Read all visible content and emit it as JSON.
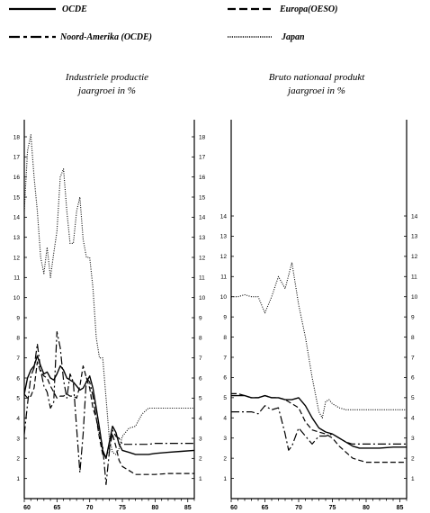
{
  "legend": [
    {
      "label": "OCDE",
      "style": "solid"
    },
    {
      "label": "Europa(OESO)",
      "style": "dashed"
    },
    {
      "label": "Noord-Amerika (OCDE)",
      "style": "dashdot"
    },
    {
      "label": "Japan",
      "style": "dotted"
    }
  ],
  "chart_data": [
    {
      "type": "line",
      "title_lines": [
        "Industriele productie",
        "jaargroei in %"
      ],
      "xlabel": "",
      "ylabel": "",
      "xlim": [
        60,
        86
      ],
      "ylim": [
        0,
        18
      ],
      "xticks": [
        60,
        65,
        70,
        75,
        80,
        85
      ],
      "xtick_labels": [
        "60",
        "65",
        "70",
        "75",
        "80",
        "85"
      ],
      "yticks": [
        1,
        2,
        3,
        4,
        5,
        6,
        7,
        8,
        9,
        10,
        11,
        12,
        13,
        14,
        15,
        16,
        17,
        18
      ],
      "grid": false,
      "series": [
        {
          "name": "OCDE",
          "style": "solid",
          "x": [
            60,
            60.5,
            61,
            61.5,
            62,
            62.5,
            63,
            63.5,
            64,
            64.5,
            65,
            65.5,
            66,
            66.5,
            67,
            67.5,
            68,
            68.5,
            69,
            69.5,
            70,
            70.5,
            71,
            71.5,
            72,
            72.5,
            73,
            73.5,
            74,
            74.5,
            75,
            76,
            77,
            78,
            79,
            80,
            82,
            84,
            86
          ],
          "y": [
            5.2,
            6.0,
            6.4,
            6.6,
            7.1,
            6.6,
            6.2,
            6.3,
            6.0,
            5.9,
            6.2,
            6.6,
            6.4,
            6.0,
            5.9,
            5.8,
            5.6,
            5.4,
            5.5,
            5.8,
            6.1,
            5.5,
            4.5,
            3.5,
            2.4,
            2.0,
            2.8,
            3.6,
            3.3,
            2.7,
            2.4,
            2.3,
            2.2,
            2.2,
            2.2,
            2.25,
            2.3,
            2.35,
            2.4
          ]
        },
        {
          "name": "Europa(OESO)",
          "style": "dashed",
          "x": [
            60,
            60.5,
            61,
            61.5,
            62,
            62.5,
            63,
            63.5,
            64,
            64.5,
            65,
            65.5,
            66,
            66.5,
            67,
            67.5,
            68,
            68.5,
            69,
            69.5,
            70,
            70.5,
            71,
            71.5,
            72,
            72.5,
            73,
            73.5,
            74,
            74.5,
            75,
            76,
            77,
            78,
            80,
            82,
            84,
            86
          ],
          "y": [
            5.2,
            5.0,
            5.1,
            5.5,
            6.8,
            6.3,
            6.1,
            6.0,
            5.6,
            5.3,
            5.0,
            5.1,
            5.1,
            5.2,
            5.1,
            5.1,
            5.0,
            5.6,
            6.6,
            6.0,
            5.5,
            4.5,
            4.0,
            3.0,
            2.2,
            2.1,
            2.5,
            3.2,
            2.6,
            1.9,
            1.6,
            1.4,
            1.2,
            1.2,
            1.2,
            1.25,
            1.25,
            1.25
          ]
        },
        {
          "name": "Noord-Amerika (OCDE)",
          "style": "dashdot",
          "x": [
            60,
            60.5,
            61,
            61.5,
            62,
            62.5,
            63,
            63.5,
            64,
            64.5,
            65,
            65.5,
            66,
            66.5,
            67,
            67.5,
            68,
            68.5,
            69,
            69.5,
            70,
            70.5,
            71,
            71.5,
            72,
            72.5,
            73,
            73.5,
            74,
            74.5,
            75,
            76,
            77,
            78,
            79,
            80,
            82,
            84,
            86
          ],
          "y": [
            3.2,
            4.7,
            6.1,
            6.5,
            7.7,
            6.4,
            5.6,
            5.3,
            4.5,
            4.8,
            8.3,
            7.5,
            5.9,
            5.0,
            6.2,
            5.8,
            3.5,
            1.3,
            3.2,
            6.0,
            5.8,
            5.1,
            4.0,
            3.2,
            2.6,
            0.7,
            2.3,
            3.4,
            3.1,
            3.0,
            2.7,
            2.7,
            2.7,
            2.7,
            2.7,
            2.75,
            2.75,
            2.75,
            2.75
          ]
        },
        {
          "name": "Japan",
          "style": "dotted",
          "x": [
            60,
            60.5,
            61,
            61.5,
            62,
            62.5,
            63,
            63.5,
            64,
            64.5,
            65,
            65.5,
            66,
            66.5,
            67,
            67.5,
            68,
            68.5,
            69,
            69.5,
            70,
            70.5,
            71,
            71.5,
            72,
            72.5,
            73,
            73.5,
            74,
            74.5,
            75,
            75.5,
            76,
            77,
            78,
            79,
            80,
            82,
            84,
            86
          ],
          "y": [
            14.3,
            17.3,
            18.1,
            16.0,
            14.3,
            12.0,
            11.2,
            12.5,
            11.0,
            12.2,
            13.3,
            16.0,
            16.4,
            14.3,
            12.7,
            12.7,
            14.3,
            15.0,
            12.9,
            12.0,
            12.0,
            10.5,
            8.0,
            7.0,
            7.0,
            5.0,
            3.0,
            2.3,
            2.2,
            2.5,
            3.1,
            3.3,
            3.5,
            3.6,
            4.2,
            4.5,
            4.5,
            4.5,
            4.5,
            4.5
          ]
        }
      ]
    },
    {
      "type": "line",
      "title_lines": [
        "Bruto nationaal produkt",
        "jaargroei in %"
      ],
      "xlabel": "",
      "ylabel": "",
      "xlim": [
        60,
        86
      ],
      "ylim": [
        0,
        14
      ],
      "xticks": [
        60,
        65,
        70,
        75,
        80,
        85
      ],
      "xtick_labels": [
        "60",
        "65",
        "70",
        "75",
        "80",
        "85"
      ],
      "yticks": [
        1,
        2,
        3,
        4,
        5,
        6,
        7,
        8,
        9,
        10,
        11,
        12,
        13,
        14
      ],
      "grid": false,
      "series": [
        {
          "name": "OCDE",
          "style": "solid",
          "x": [
            60,
            61,
            62,
            63,
            64,
            65,
            66,
            67,
            68,
            69,
            70,
            71,
            72,
            73,
            74,
            75,
            76,
            77,
            78,
            79,
            80,
            82,
            84,
            86
          ],
          "y": [
            5.1,
            5.1,
            5.1,
            5.0,
            5.0,
            5.1,
            5.0,
            5.0,
            4.9,
            4.9,
            5.0,
            4.6,
            4.0,
            3.5,
            3.3,
            3.2,
            3.0,
            2.8,
            2.6,
            2.5,
            2.5,
            2.5,
            2.55,
            2.55
          ]
        },
        {
          "name": "Europa(OESO)",
          "style": "dashed",
          "x": [
            60,
            61,
            62,
            63,
            64,
            65,
            66,
            67,
            68,
            69,
            70,
            71,
            72,
            73,
            74,
            75,
            76,
            77,
            78,
            79,
            80,
            82,
            84,
            86
          ],
          "y": [
            5.2,
            5.2,
            5.1,
            5.0,
            5.0,
            5.1,
            5.0,
            5.0,
            4.9,
            4.7,
            4.5,
            3.8,
            3.4,
            3.3,
            3.2,
            3.0,
            2.6,
            2.3,
            2.0,
            1.9,
            1.8,
            1.8,
            1.8,
            1.8
          ]
        },
        {
          "name": "Noord-Amerika (OCDE)",
          "style": "dashdot",
          "x": [
            60,
            61,
            62,
            63,
            64,
            65,
            66,
            67,
            68,
            68.5,
            69,
            70,
            71,
            72,
            73,
            74,
            75,
            76,
            77,
            78,
            80,
            82,
            84,
            86
          ],
          "y": [
            4.3,
            4.3,
            4.3,
            4.3,
            4.2,
            4.6,
            4.4,
            4.5,
            3.2,
            2.4,
            2.6,
            3.5,
            3.1,
            2.7,
            3.1,
            3.1,
            3.2,
            3.0,
            2.8,
            2.7,
            2.7,
            2.7,
            2.7,
            2.7
          ]
        },
        {
          "name": "Japan",
          "style": "dotted",
          "x": [
            60,
            61,
            62,
            63,
            64,
            65,
            66,
            67,
            68,
            69,
            70,
            71,
            72,
            73,
            73.5,
            74,
            74.5,
            75,
            76,
            77,
            78,
            80,
            82,
            84,
            86
          ],
          "y": [
            10.0,
            10.0,
            10.1,
            10.0,
            10.0,
            9.2,
            10.0,
            11.0,
            10.4,
            11.7,
            9.6,
            8.0,
            6.0,
            4.3,
            4.0,
            4.8,
            4.9,
            4.7,
            4.5,
            4.4,
            4.4,
            4.4,
            4.4,
            4.4,
            4.4
          ]
        }
      ]
    }
  ]
}
